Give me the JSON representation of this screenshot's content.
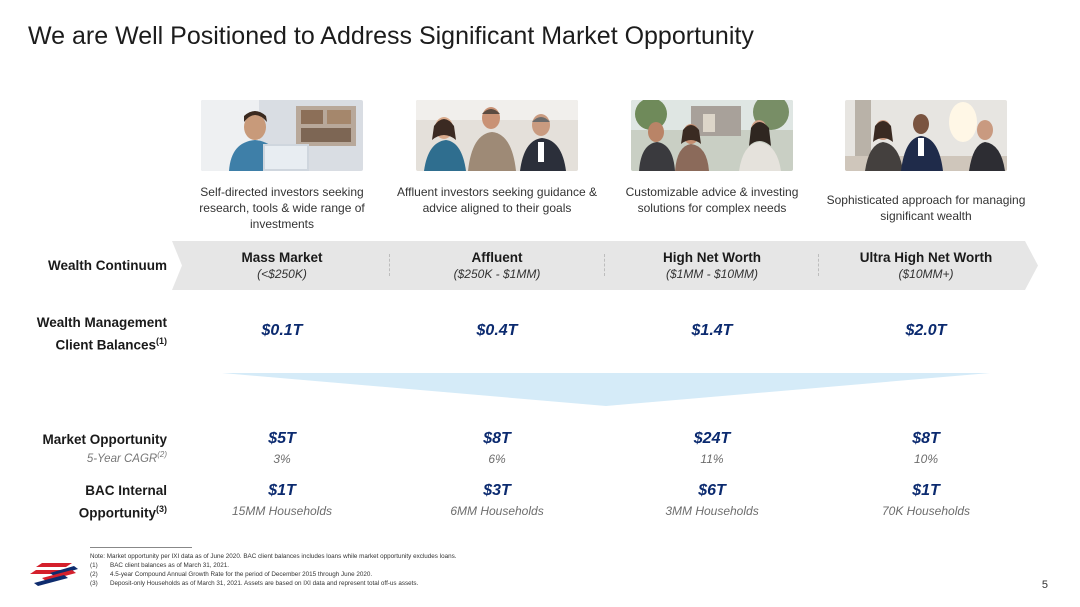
{
  "title": "We are Well Positioned to Address Significant Market Opportunity",
  "segments": [
    {
      "desc": "Self-directed investors seeking research, tools & wide range of investments",
      "name": "Mass Market",
      "range": "(<$250K)",
      "balance": "$0.1T",
      "market": "$5T",
      "cagr": "3%",
      "bac": "$1T",
      "households": "15MM Households"
    },
    {
      "desc": "Affluent investors seeking guidance & advice aligned to their goals",
      "name": "Affluent",
      "range": "($250K - $1MM)",
      "balance": "$0.4T",
      "market": "$8T",
      "cagr": "6%",
      "bac": "$3T",
      "households": "6MM Households"
    },
    {
      "desc": "Customizable advice & investing solutions for complex needs",
      "name": "High Net Worth",
      "range": "($1MM - $10MM)",
      "balance": "$1.4T",
      "market": "$24T",
      "cagr": "11%",
      "bac": "$6T",
      "households": "3MM Households"
    },
    {
      "desc": "Sophisticated approach for managing significant wealth",
      "name": "Ultra High Net Worth",
      "range": "($10MM+)",
      "balance": "$2.0T",
      "market": "$8T",
      "cagr": "10%",
      "bac": "$1T",
      "households": "70K Households"
    }
  ],
  "labels": {
    "wealth_continuum": "Wealth Continuum",
    "wm_line1": "Wealth Management",
    "wm_line2": "Client Balances",
    "wm_sup": "(1)",
    "market_opportunity": "Market Opportunity",
    "cagr_label": "5-Year CAGR",
    "cagr_sup": "(2)",
    "bac_line1": "BAC Internal",
    "bac_line2": "Opportunity",
    "bac_sup": "(3)"
  },
  "footnotes": {
    "note": "Note: Market opportunity per IXI data as of June 2020. BAC client balances includes loans while market opportunity excludes loans.",
    "items": [
      {
        "key": "(1)",
        "text": "BAC client balances as of March 31, 2021."
      },
      {
        "key": "(2)",
        "text": "4.5-year Compound Annual Growth Rate for the period of December 2015 through June 2020."
      },
      {
        "key": "(3)",
        "text": "Deposit-only Households as of March 31, 2021. Assets are based on IXI data and represent total off-us assets."
      }
    ]
  },
  "page_number": "5",
  "colors": {
    "accent_blue": "#0b2a6f",
    "band_gray": "#e6e6e6",
    "funnel_blue": "#d5ebf8",
    "logo_red": "#d4202c",
    "logo_blue": "#0e2c6e"
  }
}
